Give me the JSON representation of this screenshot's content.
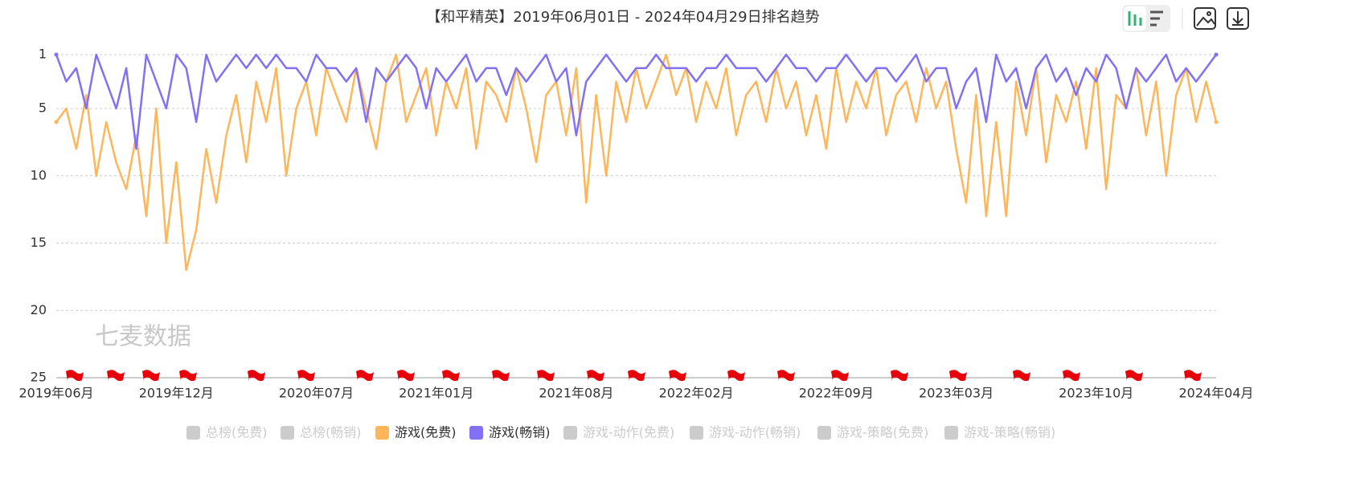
{
  "chart_data": {
    "type": "line",
    "title": "【和平精英】2019年06月01日 - 2024年04月29日排名趋势",
    "watermark": "七麦数据",
    "categories": [
      "2019年06月",
      null,
      null,
      null,
      null,
      null,
      null,
      null,
      null,
      null,
      null,
      null,
      "2019年12月",
      null,
      null,
      null,
      null,
      null,
      null,
      null,
      null,
      null,
      null,
      null,
      null,
      null,
      "2020年07月",
      null,
      null,
      null,
      null,
      null,
      null,
      null,
      null,
      null,
      null,
      null,
      "2021年01月",
      null,
      null,
      null,
      null,
      null,
      null,
      null,
      null,
      null,
      null,
      null,
      null,
      null,
      "2021年08月",
      null,
      null,
      null,
      null,
      null,
      null,
      null,
      null,
      null,
      null,
      null,
      "2022年02月",
      null,
      null,
      null,
      null,
      null,
      null,
      null,
      null,
      null,
      null,
      null,
      null,
      null,
      "2022年09月",
      null,
      null,
      null,
      null,
      null,
      null,
      null,
      null,
      null,
      null,
      null,
      "2023年03月",
      null,
      null,
      null,
      null,
      null,
      null,
      null,
      null,
      null,
      null,
      null,
      null,
      null,
      "2023年10月",
      null,
      null,
      null,
      null,
      null,
      null,
      null,
      null,
      null,
      null,
      null,
      "2024年04月"
    ],
    "ylim": [
      1,
      25
    ],
    "y_inverted": true,
    "yticks": [
      1,
      5,
      10,
      15,
      20,
      25
    ],
    "grid": true,
    "series": [
      {
        "name": "总榜(免费)",
        "color": "#cccccc",
        "hidden": true
      },
      {
        "name": "总榜(畅销)",
        "color": "#cccccc",
        "hidden": true
      },
      {
        "name": "游戏(免费)",
        "color": "#ffb65a",
        "values": [
          6,
          5,
          8,
          4,
          10,
          6,
          9,
          11,
          7,
          13,
          5,
          15,
          9,
          17,
          14,
          8,
          12,
          7,
          4,
          9,
          3,
          6,
          2,
          10,
          5,
          3,
          7,
          2,
          4,
          6,
          2,
          5,
          8,
          3,
          1,
          6,
          4,
          2,
          7,
          3,
          5,
          2,
          8,
          3,
          4,
          6,
          2,
          5,
          9,
          4,
          3,
          7,
          2,
          12,
          4,
          10,
          3,
          6,
          2,
          5,
          3,
          1,
          4,
          2,
          6,
          3,
          5,
          2,
          7,
          4,
          3,
          6,
          2,
          5,
          3,
          7,
          4,
          8,
          2,
          6,
          3,
          5,
          2,
          7,
          4,
          3,
          6,
          2,
          5,
          3,
          8,
          12,
          4,
          13,
          6,
          13,
          3,
          7,
          2,
          9,
          4,
          6,
          3,
          8,
          2,
          11,
          4,
          5,
          2,
          7,
          3,
          10,
          4,
          2,
          6,
          3,
          6
        ]
      },
      {
        "name": "游戏(畅销)",
        "color": "#8270f6",
        "values": [
          1,
          3,
          2,
          5,
          1,
          3,
          5,
          2,
          8,
          1,
          3,
          5,
          1,
          2,
          6,
          1,
          3,
          2,
          1,
          2,
          1,
          2,
          1,
          2,
          2,
          3,
          1,
          2,
          2,
          3,
          2,
          6,
          2,
          3,
          2,
          1,
          2,
          5,
          2,
          3,
          2,
          1,
          3,
          2,
          2,
          4,
          2,
          3,
          2,
          1,
          3,
          2,
          7,
          3,
          2,
          1,
          2,
          3,
          2,
          2,
          1,
          2,
          2,
          2,
          3,
          2,
          2,
          1,
          2,
          2,
          2,
          3,
          2,
          1,
          2,
          2,
          3,
          2,
          2,
          1,
          2,
          3,
          2,
          2,
          3,
          2,
          1,
          3,
          2,
          2,
          5,
          3,
          2,
          6,
          1,
          3,
          2,
          5,
          2,
          1,
          3,
          2,
          4,
          2,
          3,
          1,
          2,
          5,
          2,
          3,
          2,
          1,
          3,
          2,
          3,
          2,
          1
        ]
      },
      {
        "name": "游戏-动作(免费)",
        "color": "#cccccc",
        "hidden": true
      },
      {
        "name": "游戏-动作(畅销)",
        "color": "#cccccc",
        "hidden": true
      },
      {
        "name": "游戏-策略(免费)",
        "color": "#cccccc",
        "hidden": true
      },
      {
        "name": "游戏-策略(畅销)",
        "color": "#cccccc",
        "hidden": true
      }
    ]
  }
}
